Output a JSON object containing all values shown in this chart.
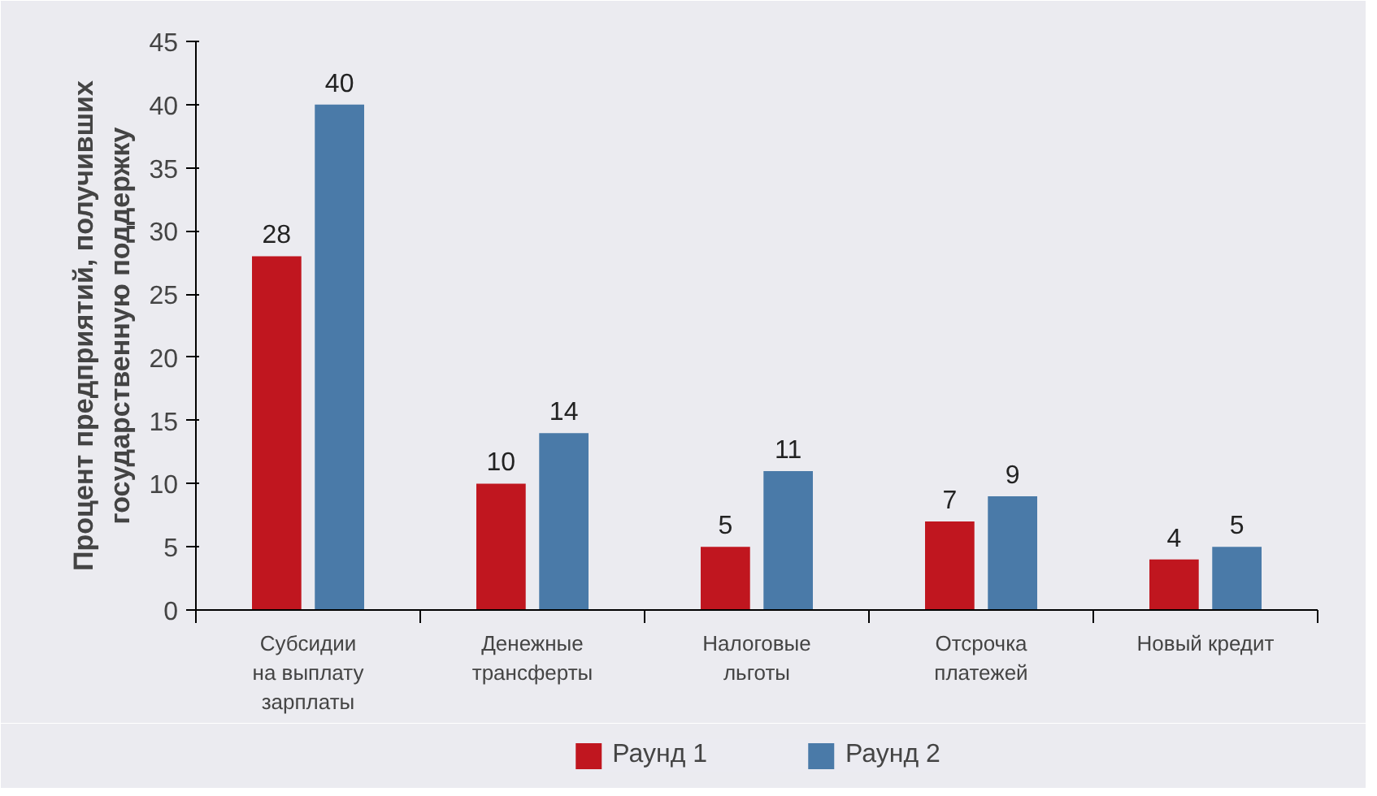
{
  "chart_data": {
    "type": "bar",
    "ylabel": "Процент предприятий, получивших\nгосударственную поддержку",
    "categories": [
      "Субсидии\nна выплату\nзарплаты",
      "Денежные\nтрансферты",
      "Налоговые\nльготы",
      "Отсрочка\nплатежей",
      "Новый кредит"
    ],
    "series": [
      {
        "name": "Раунд 1",
        "color": "#c0161f",
        "values": [
          28,
          10,
          5,
          7,
          4
        ]
      },
      {
        "name": "Раунд 2",
        "color": "#4a7aa8",
        "values": [
          40,
          14,
          11,
          9,
          5
        ]
      }
    ],
    "ylim": [
      0,
      45
    ],
    "yticks": [
      0,
      5,
      10,
      15,
      20,
      25,
      30,
      35,
      40,
      45
    ],
    "data_labels": true,
    "grid": false,
    "legend": "bottom"
  }
}
